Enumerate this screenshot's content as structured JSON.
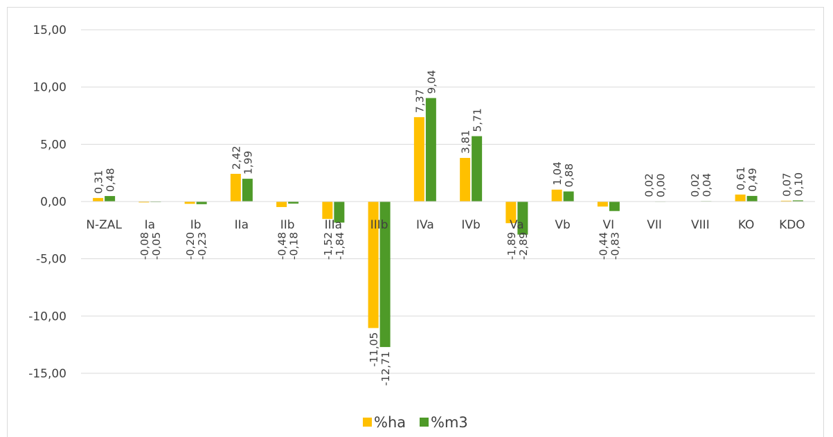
{
  "chart_data": {
    "type": "bar",
    "title": "",
    "xlabel": "",
    "ylabel": "",
    "ylim": [
      -18.5,
      15
    ],
    "yticks": [
      15,
      10,
      5,
      0,
      -5,
      -10,
      -15
    ],
    "ytick_labels": [
      "15,00",
      "10,00",
      "5,00",
      "0,00",
      "-5,00",
      "-10,00",
      "-15,00"
    ],
    "grid": true,
    "legend_position": "bottom",
    "categories": [
      "N-ZAL",
      "Ia",
      "Ib",
      "IIa",
      "IIb",
      "IIIa",
      "IIIb",
      "IVa",
      "IVb",
      "Va",
      "Vb",
      "VI",
      "VII",
      "VIII",
      "KO",
      "KDO"
    ],
    "series": [
      {
        "name": "%ha",
        "color": "#FFC000",
        "values": [
          0.31,
          -0.08,
          -0.2,
          2.42,
          -0.48,
          -1.52,
          -11.05,
          7.37,
          3.81,
          -1.89,
          1.04,
          -0.44,
          0.02,
          0.02,
          0.61,
          0.07
        ],
        "labels": [
          "0,31",
          "-0,08",
          "-0,20",
          "2,42",
          "-0,48",
          "-1,52",
          "-11,05",
          "7,37",
          "3,81",
          "-1,89",
          "1,04",
          "-0,44",
          "0,02",
          "0,02",
          "0,61",
          "0,07"
        ]
      },
      {
        "name": "%m3",
        "color": "#4E9A28",
        "values": [
          0.48,
          -0.05,
          -0.23,
          1.99,
          -0.18,
          -1.84,
          -12.71,
          9.04,
          5.71,
          -2.89,
          0.88,
          -0.83,
          0.0,
          0.04,
          0.49,
          0.1
        ],
        "labels": [
          "0,48",
          "-0,05",
          "-0,23",
          "1,99",
          "-0,18",
          "-1,84",
          "-12,71",
          "9,04",
          "5,71",
          "-2,89",
          "0,88",
          "-0,83",
          "0,00",
          "0,04",
          "0,49",
          "0,10"
        ]
      }
    ]
  }
}
